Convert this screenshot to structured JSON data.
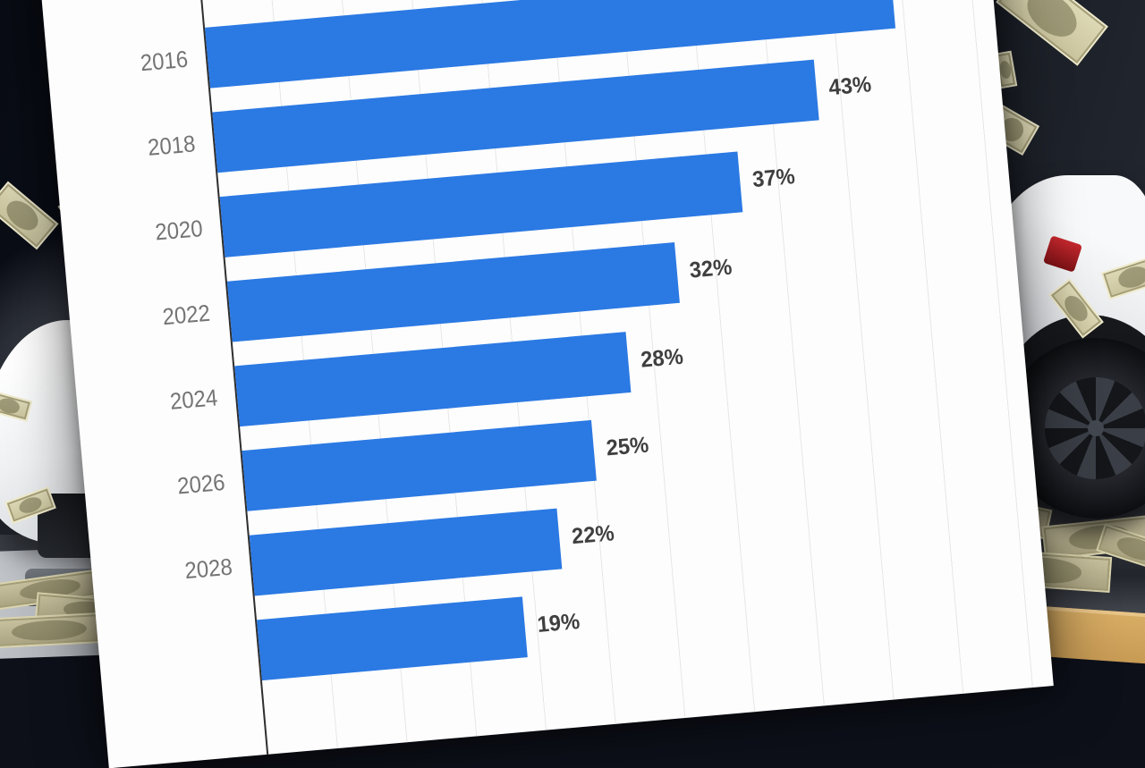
{
  "chart_data": {
    "type": "bar",
    "orientation": "horizontal",
    "categories": [
      "2016",
      "2018",
      "2020",
      "2022",
      "2024",
      "2026",
      "2028",
      ""
    ],
    "values": [
      49,
      43,
      37,
      32,
      28,
      25,
      22,
      19
    ],
    "value_labels": [
      "",
      "43%",
      "37%",
      "32%",
      "28%",
      "25%",
      "22%",
      "19%"
    ],
    "title": "",
    "xlabel": "",
    "ylabel": "",
    "xlim": [
      0,
      55
    ],
    "gridline_interval": 5,
    "layout_hints": {
      "grid": "faint vertical gridlines every 5 units",
      "panel_tilt_deg": -5,
      "cropping": "top bar's value label and bottom bar's year label fall outside the image"
    }
  },
  "colors": {
    "bar": "#2b79e3",
    "panel_bg": "#fdfdfd",
    "axis": "#2e2e2e",
    "gridline": "#e7e7e7",
    "year_label": "#747474",
    "value_label": "#3f3f3f",
    "background": "#0d1019",
    "dollar_bill": "#d8d3ad",
    "gold_stack": "#c89b55"
  },
  "scene": {
    "elements": [
      "tesla-car-front-left",
      "tesla-car-rear-right",
      "falling-dollar-bills",
      "money-piles",
      "tilted-white-chart-panel"
    ]
  }
}
